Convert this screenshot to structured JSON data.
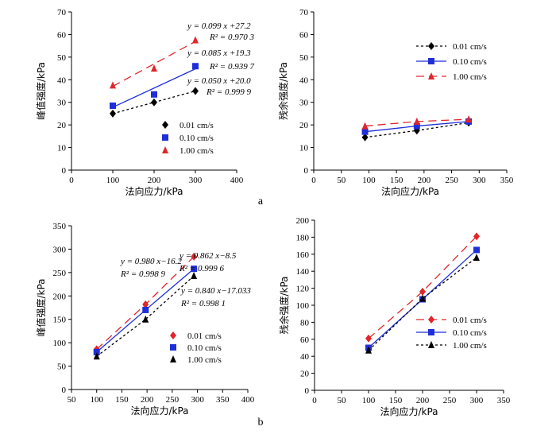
{
  "figure": {
    "label_a": "a",
    "label_b": "b"
  },
  "chart_data": [
    {
      "id": "a-left",
      "type": "scatter",
      "xlabel": "法向应力/kPa",
      "ylabel": "峰值强度/kPa",
      "xlim": [
        0,
        400
      ],
      "ylim": [
        0,
        70
      ],
      "xticks": [
        0,
        100,
        200,
        300,
        400
      ],
      "yticks": [
        0,
        10,
        20,
        30,
        40,
        50,
        60,
        70
      ],
      "legend": "center",
      "series": [
        {
          "name": "0.01 cm/s",
          "color": "#000000",
          "marker": "diamond",
          "dash": "3,3",
          "x": [
            100,
            200,
            300
          ],
          "y": [
            25,
            30,
            35
          ],
          "fit": [
            20.0,
            0.05
          ]
        },
        {
          "name": "0.10 cm/s",
          "color": "#1f2fd8",
          "marker": "square",
          "dash": "",
          "x": [
            100,
            200,
            300
          ],
          "y": [
            28.5,
            33.5,
            46
          ],
          "fit": [
            19.3,
            0.085
          ]
        },
        {
          "name": "1.00 cm/s",
          "color": "#e0262a",
          "marker": "triangle",
          "dash": "10,6",
          "x": [
            100,
            200,
            300
          ],
          "y": [
            37.5,
            45,
            57.5
          ],
          "fit": [
            27.2,
            0.099
          ]
        }
      ],
      "annotations": [
        {
          "eq": "y = 0.099 x +27.2",
          "r2": "R² = 0.970 3"
        },
        {
          "eq": "y = 0.085 x +19.3",
          "r2": "R² = 0.939 7"
        },
        {
          "eq": "y = 0.050 x +20.0",
          "r2": "R² = 0.999 9"
        }
      ]
    },
    {
      "id": "a-right",
      "type": "line",
      "xlabel": "法向应力/kPa",
      "ylabel": "残余强度/kPa",
      "xlim": [
        0,
        350
      ],
      "ylim": [
        0,
        70
      ],
      "xticks": [
        0,
        50,
        100,
        150,
        200,
        250,
        300,
        350
      ],
      "yticks": [
        0,
        10,
        20,
        30,
        40,
        50,
        60,
        70
      ],
      "legend": "top-right",
      "series": [
        {
          "name": "0.01 cm/s",
          "color": "#000000",
          "marker": "diamond",
          "dash": "3,3",
          "x": [
            93,
            187,
            281
          ],
          "y": [
            14.5,
            17.5,
            21
          ]
        },
        {
          "name": "0.10 cm/s",
          "color": "#1f2fd8",
          "marker": "square",
          "dash": "",
          "x": [
            93,
            187,
            281
          ],
          "y": [
            17,
            19.5,
            21.5
          ]
        },
        {
          "name": "1.00 cm/s",
          "color": "#e0262a",
          "marker": "triangle",
          "dash": "10,6",
          "x": [
            93,
            187,
            281
          ],
          "y": [
            19.5,
            21.5,
            22.5
          ]
        }
      ]
    },
    {
      "id": "b-left",
      "type": "line",
      "xlabel": "法向应力/kPa",
      "ylabel": "峰值强度/kPa",
      "xlim": [
        50,
        400
      ],
      "ylim": [
        0,
        350
      ],
      "xticks": [
        50,
        100,
        150,
        200,
        250,
        300,
        350,
        400
      ],
      "yticks": [
        0,
        50,
        100,
        150,
        200,
        250,
        300,
        350
      ],
      "legend": "bottom-right",
      "series": [
        {
          "name": "0.01 cm/s",
          "color": "#e0262a",
          "marker": "diamond",
          "dash": "10,6",
          "x": [
            100,
            197,
            293
          ],
          "y": [
            86,
            182,
            284
          ]
        },
        {
          "name": "0.10 cm/s",
          "color": "#1f2fd8",
          "marker": "square",
          "dash": "",
          "x": [
            100,
            197,
            293
          ],
          "y": [
            80,
            170,
            258
          ]
        },
        {
          "name": "1.00 cm/s",
          "color": "#000000",
          "marker": "triangle",
          "dash": "3,3",
          "x": [
            100,
            197,
            293
          ],
          "y": [
            71,
            150,
            243
          ]
        }
      ],
      "annotations": [
        {
          "eq": "y = 0.980 x−16.2",
          "r2": "R² = 0.998 9"
        },
        {
          "eq": "y = 0.862 x−8.5",
          "r2": "R² = 0.999 6"
        },
        {
          "eq": "y = 0.840 x−17.033",
          "r2": "R² = 0.998 1"
        }
      ]
    },
    {
      "id": "b-right",
      "type": "line",
      "xlabel": "法向应力/kPa",
      "ylabel": "残余强度/kPa",
      "xlim": [
        0,
        350
      ],
      "ylim": [
        0,
        200
      ],
      "xticks": [
        0,
        50,
        100,
        150,
        200,
        250,
        300,
        350
      ],
      "yticks": [
        0,
        20,
        40,
        60,
        80,
        100,
        120,
        140,
        160,
        180,
        200
      ],
      "legend": "bottom-right",
      "series": [
        {
          "name": "0.01 cm/s",
          "color": "#e0262a",
          "marker": "diamond",
          "dash": "10,6",
          "x": [
            100,
            200,
            300
          ],
          "y": [
            61,
            116,
            181
          ]
        },
        {
          "name": "0.10 cm/s",
          "color": "#1f2fd8",
          "marker": "square",
          "dash": "",
          "x": [
            100,
            200,
            300
          ],
          "y": [
            50,
            107,
            165
          ]
        },
        {
          "name": "1.00 cm/s",
          "color": "#000000",
          "marker": "triangle",
          "dash": "3,3",
          "x": [
            100,
            200,
            300
          ],
          "y": [
            47,
            108,
            156
          ]
        }
      ]
    }
  ]
}
